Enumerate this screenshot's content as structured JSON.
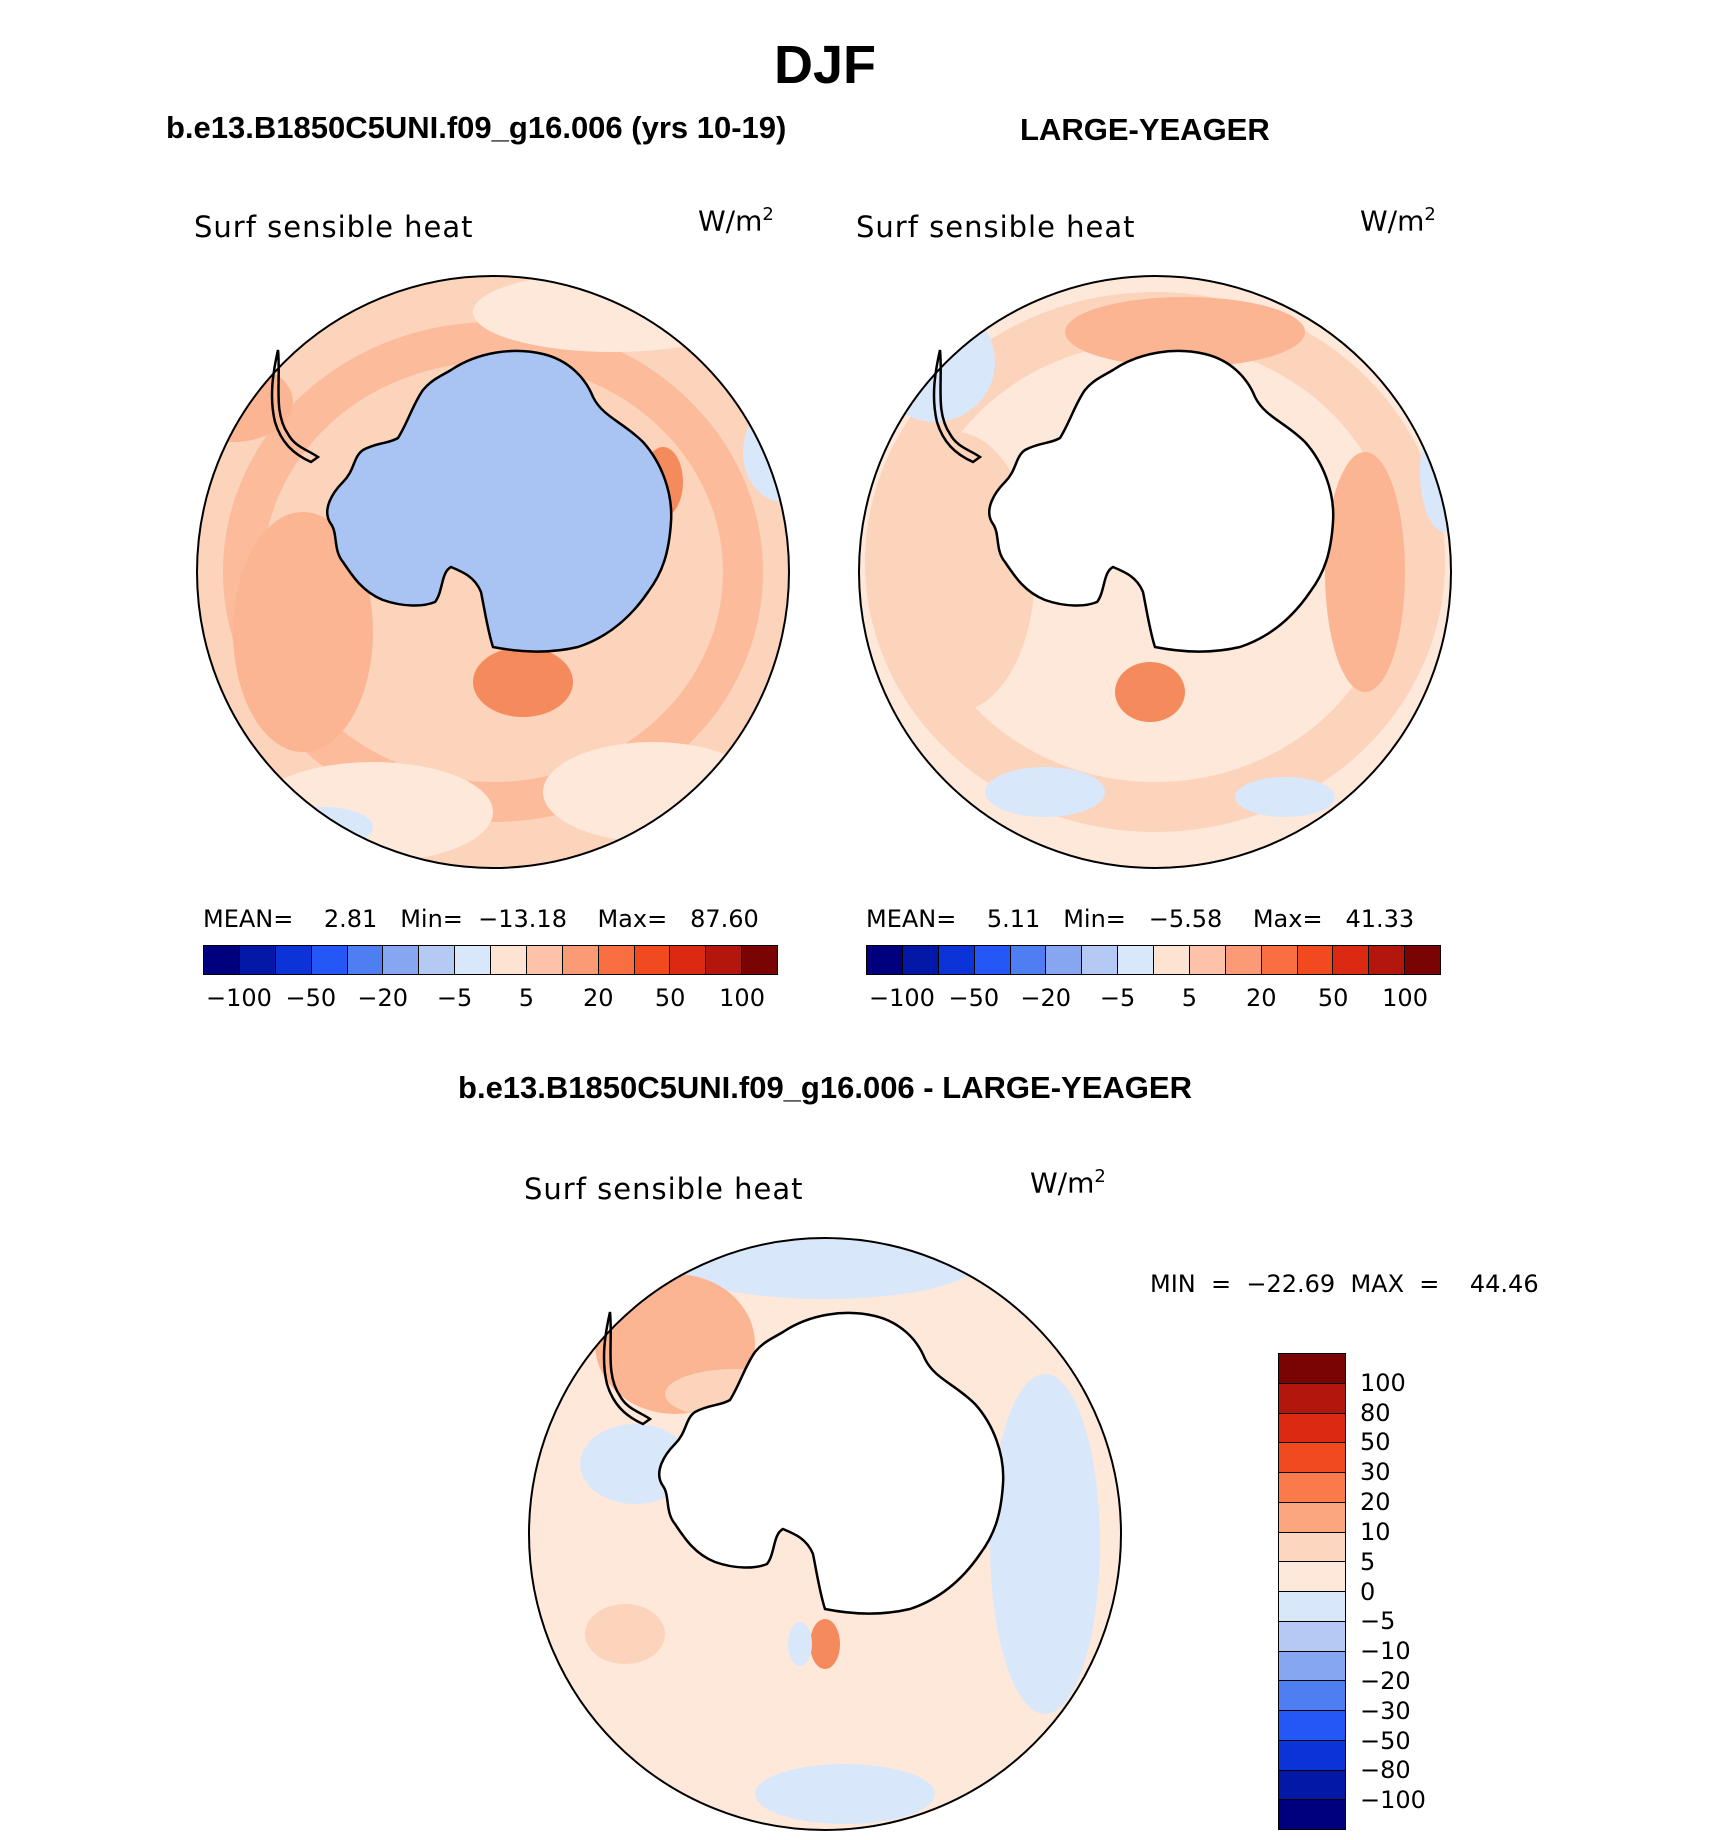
{
  "title": "DJF",
  "panels": [
    {
      "title": "b.e13.B1850C5UNI.f09_g16.006 (yrs 10-19)",
      "variable": "Surf  sensible  heat",
      "units": "W/m",
      "units_sup": "2",
      "stats": "MEAN=    2.81   Min=  −13.18    Max=   87.60",
      "land_color": "#a9c4f3",
      "colorbar_labels": [
        "−100",
        "−50",
        "−20",
        "−5",
        "5",
        "20",
        "50",
        "100"
      ]
    },
    {
      "title": "LARGE-YEAGER",
      "variable": "Surf  sensible  heat",
      "units": "W/m",
      "units_sup": "2",
      "stats": "MEAN=    5.11   Min=   −5.58    Max=   41.33",
      "land_color": "#ffffff",
      "colorbar_labels": [
        "−100",
        "−50",
        "−20",
        "−5",
        "5",
        "20",
        "50",
        "100"
      ]
    }
  ],
  "difference": {
    "title": "b.e13.B1850C5UNI.f09_g16.006 - LARGE-YEAGER",
    "variable": "Surf  sensible  heat",
    "units": "W/m",
    "units_sup": "2",
    "stats": "MIN  =  −22.69  MAX  =    44.46",
    "colorbar_labels": [
      "100",
      "80",
      "50",
      "30",
      "20",
      "10",
      "5",
      "0",
      "−5",
      "−10",
      "−20",
      "−30",
      "−50",
      "−80",
      "−100"
    ]
  },
  "colors": {
    "field_palette": [
      "#00007f",
      "#0418a8",
      "#0c33d8",
      "#2457f5",
      "#4f7ef2",
      "#86a6f2",
      "#b4caf4",
      "#d9e7fb",
      "#fde4d2",
      "#fcc3a8",
      "#fb9b75",
      "#f96f42",
      "#f24a1f",
      "#dc2a12",
      "#b3160c",
      "#7a0404"
    ],
    "diff_palette": [
      "#7a0404",
      "#b3160c",
      "#dc2a12",
      "#f24a1f",
      "#fb7a4c",
      "#fba67e",
      "#fdd6c0",
      "#fde8da",
      "#d9e7fb",
      "#b4caf4",
      "#86a6f2",
      "#4f7ef2",
      "#2457f5",
      "#0c33d8",
      "#0418a8",
      "#00007f"
    ],
    "ocean_base": "#fcd3bb",
    "ocean_light": "#fde8da",
    "ocean_warm": "#fbb592",
    "ocean_hot": "#f58a5c",
    "ocean_cold": "#d9e7fb",
    "diff_ocean": "#fde8da"
  }
}
